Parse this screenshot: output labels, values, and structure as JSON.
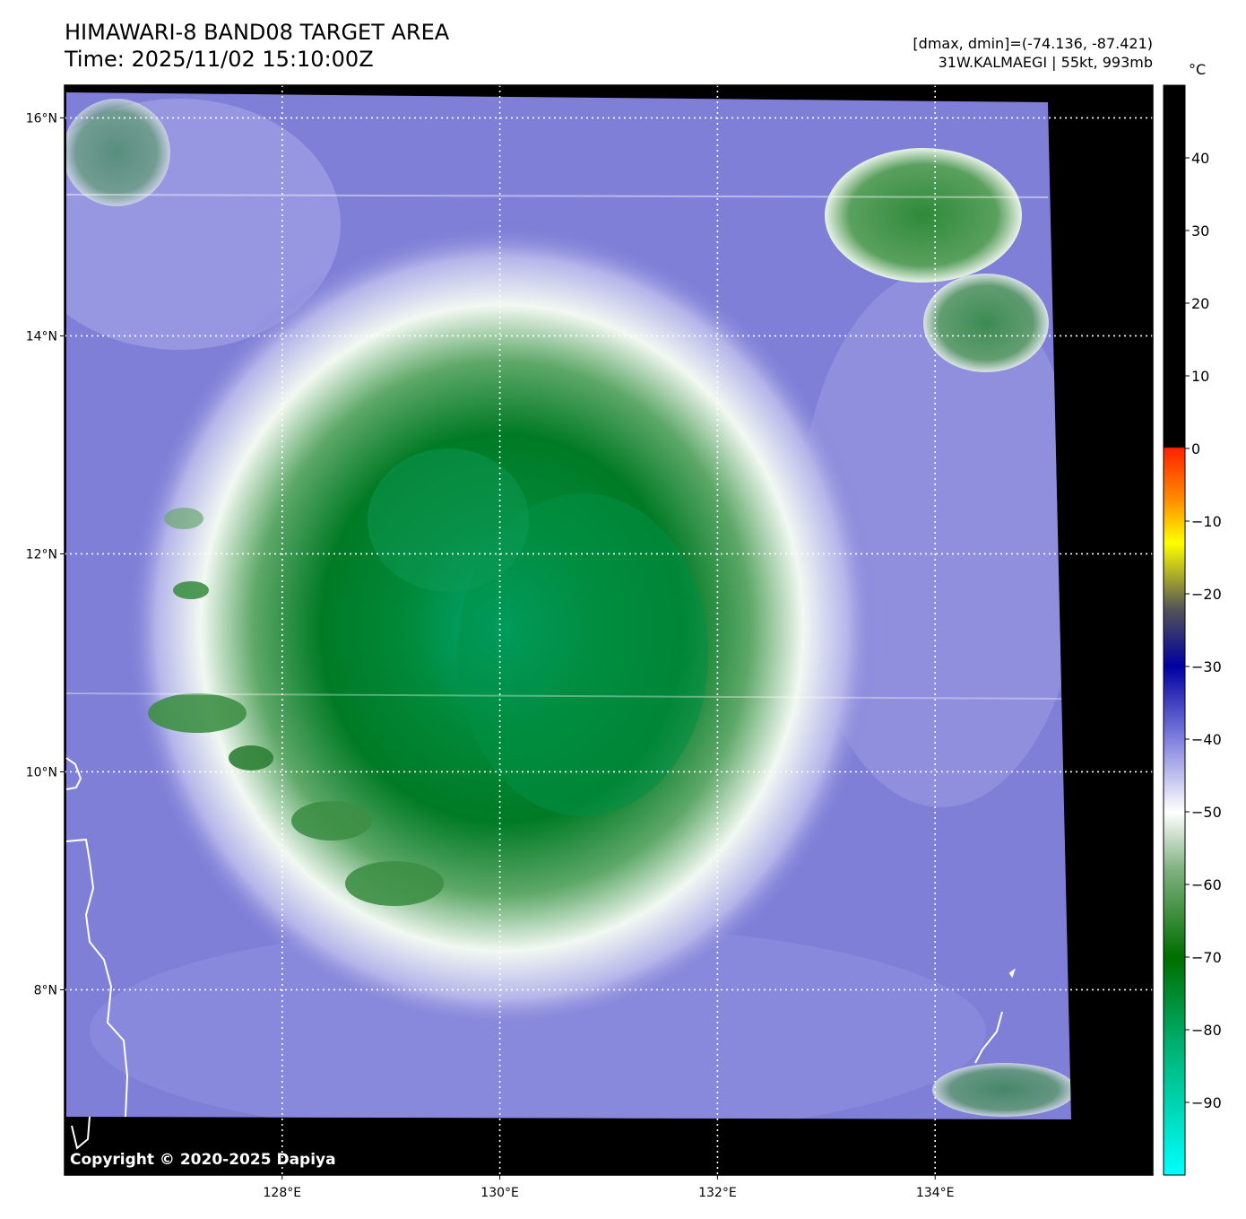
{
  "header": {
    "title": "HIMAWARI-8 BAND08 TARGET AREA",
    "time": "Time: 2025/11/02 15:10:00Z",
    "dminmax": "[dmax, dmin]=(-74.136, -87.421)",
    "storm": "31W.KALMAEGI | 55kt, 993mb"
  },
  "map": {
    "lon_ticks": [
      "128°E",
      "130°E",
      "132°E",
      "134°E"
    ],
    "lat_ticks": [
      "16°N",
      "14°N",
      "12°N",
      "10°N",
      "8°N"
    ],
    "lon_range": [
      126.0,
      136.0
    ],
    "lat_range": [
      6.3,
      16.3
    ],
    "lon_values": [
      128,
      130,
      132,
      134
    ],
    "lat_values": [
      16,
      14,
      12,
      10,
      8
    ],
    "center_of_cold_cloud": {
      "lon": 130.6,
      "lat": 11.1
    },
    "copyright": "Copyright © 2020-2025 Dapiya"
  },
  "colorbar": {
    "unit": "°C",
    "tick_labels": [
      "40",
      "30",
      "20",
      "10",
      "0",
      "−10",
      "−20",
      "−30",
      "−40",
      "−50",
      "−60",
      "−70",
      "−80",
      "−90"
    ],
    "tick_values": [
      40,
      30,
      20,
      10,
      0,
      -10,
      -20,
      -30,
      -40,
      -50,
      -60,
      -70,
      -80,
      -90
    ],
    "range": [
      -100,
      50
    ],
    "colors": {
      "warm": "#000000",
      "red": "#ff2200",
      "orange": "#ff8c00",
      "yellow": "#ffff00",
      "gray": "#555555",
      "blue": "#0000a0",
      "light_blue": "#8080ff",
      "white": "#ffffff",
      "green": "#006e00",
      "cyan": "#00ffff"
    }
  }
}
